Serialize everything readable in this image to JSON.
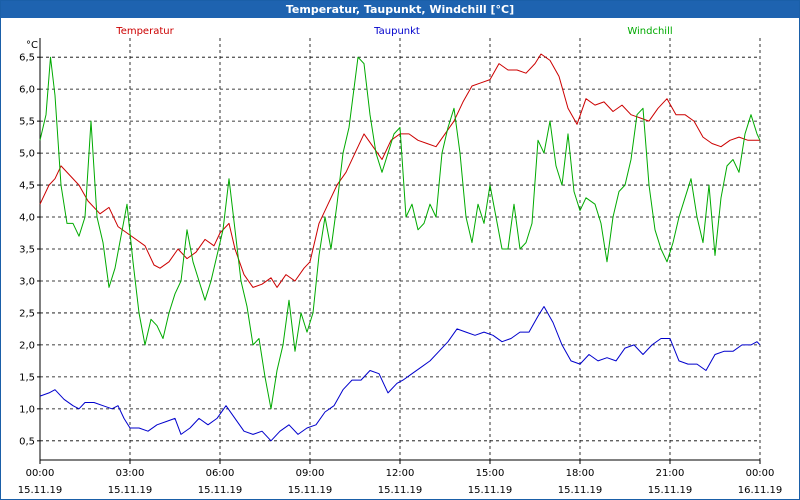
{
  "window": {
    "title": "Temperatur, Taupunkt, Windchill [°C]"
  },
  "chart_data": {
    "type": "line",
    "title": "Temperatur, Taupunkt, Windchill [°C]",
    "ylabel": "°C",
    "xlabel": "",
    "x_ticks": [
      {
        "time": "00:00",
        "date": "15.11.19"
      },
      {
        "time": "03:00",
        "date": "15.11.19"
      },
      {
        "time": "06:00",
        "date": "15.11.19"
      },
      {
        "time": "09:00",
        "date": "15.11.19"
      },
      {
        "time": "12:00",
        "date": "15.11.19"
      },
      {
        "time": "15:00",
        "date": "15.11.19"
      },
      {
        "time": "18:00",
        "date": "15.11.19"
      },
      {
        "time": "21:00",
        "date": "15.11.19"
      },
      {
        "time": "00:00",
        "date": "16.11.19"
      }
    ],
    "x_unit": "hours",
    "xlim": [
      0,
      24
    ],
    "ylim": [
      0.2,
      6.8
    ],
    "y_ticks": [
      "0,5",
      "1,0",
      "1,5",
      "2,0",
      "2,5",
      "3,0",
      "3,5",
      "4,0",
      "4,5",
      "5,0",
      "5,5",
      "6,0",
      "6,5"
    ],
    "grid": true,
    "legend": "top",
    "series": [
      {
        "name": "Temperatur",
        "color": "#cc0000",
        "points": [
          [
            0,
            4.2
          ],
          [
            0.3,
            4.5
          ],
          [
            0.5,
            4.6
          ],
          [
            0.7,
            4.8
          ],
          [
            1.0,
            4.65
          ],
          [
            1.3,
            4.5
          ],
          [
            1.6,
            4.25
          ],
          [
            2.0,
            4.05
          ],
          [
            2.3,
            4.15
          ],
          [
            2.6,
            3.85
          ],
          [
            2.9,
            3.75
          ],
          [
            3.2,
            3.65
          ],
          [
            3.5,
            3.55
          ],
          [
            3.8,
            3.25
          ],
          [
            4.0,
            3.2
          ],
          [
            4.3,
            3.3
          ],
          [
            4.6,
            3.5
          ],
          [
            4.9,
            3.35
          ],
          [
            5.2,
            3.45
          ],
          [
            5.5,
            3.65
          ],
          [
            5.8,
            3.55
          ],
          [
            6.0,
            3.75
          ],
          [
            6.3,
            3.9
          ],
          [
            6.5,
            3.5
          ],
          [
            6.8,
            3.1
          ],
          [
            7.1,
            2.9
          ],
          [
            7.4,
            2.95
          ],
          [
            7.7,
            3.05
          ],
          [
            7.9,
            2.9
          ],
          [
            8.2,
            3.1
          ],
          [
            8.5,
            3.0
          ],
          [
            8.8,
            3.2
          ],
          [
            9.0,
            3.3
          ],
          [
            9.3,
            3.9
          ],
          [
            9.6,
            4.2
          ],
          [
            9.9,
            4.5
          ],
          [
            10.2,
            4.7
          ],
          [
            10.5,
            5.0
          ],
          [
            10.8,
            5.3
          ],
          [
            11.1,
            5.1
          ],
          [
            11.4,
            4.9
          ],
          [
            11.7,
            5.2
          ],
          [
            12.0,
            5.3
          ],
          [
            12.3,
            5.3
          ],
          [
            12.6,
            5.2
          ],
          [
            12.9,
            5.15
          ],
          [
            13.2,
            5.1
          ],
          [
            13.5,
            5.3
          ],
          [
            13.8,
            5.5
          ],
          [
            14.1,
            5.8
          ],
          [
            14.4,
            6.05
          ],
          [
            14.7,
            6.1
          ],
          [
            15.0,
            6.15
          ],
          [
            15.3,
            6.4
          ],
          [
            15.6,
            6.3
          ],
          [
            15.9,
            6.3
          ],
          [
            16.2,
            6.25
          ],
          [
            16.5,
            6.4
          ],
          [
            16.7,
            6.55
          ],
          [
            17.0,
            6.45
          ],
          [
            17.3,
            6.2
          ],
          [
            17.6,
            5.7
          ],
          [
            17.9,
            5.45
          ],
          [
            18.2,
            5.85
          ],
          [
            18.5,
            5.75
          ],
          [
            18.8,
            5.8
          ],
          [
            19.1,
            5.65
          ],
          [
            19.4,
            5.75
          ],
          [
            19.7,
            5.6
          ],
          [
            20.0,
            5.55
          ],
          [
            20.3,
            5.5
          ],
          [
            20.6,
            5.7
          ],
          [
            20.9,
            5.85
          ],
          [
            21.2,
            5.6
          ],
          [
            21.5,
            5.6
          ],
          [
            21.8,
            5.5
          ],
          [
            22.1,
            5.25
          ],
          [
            22.4,
            5.15
          ],
          [
            22.7,
            5.1
          ],
          [
            23.0,
            5.2
          ],
          [
            23.3,
            5.25
          ],
          [
            23.6,
            5.2
          ],
          [
            24.0,
            5.2
          ]
        ]
      },
      {
        "name": "Taupunkt",
        "color": "#0000cc",
        "points": [
          [
            0,
            1.2
          ],
          [
            0.3,
            1.25
          ],
          [
            0.5,
            1.3
          ],
          [
            0.8,
            1.15
          ],
          [
            1.1,
            1.05
          ],
          [
            1.3,
            1.0
          ],
          [
            1.5,
            1.1
          ],
          [
            1.8,
            1.1
          ],
          [
            2.1,
            1.05
          ],
          [
            2.4,
            1.0
          ],
          [
            2.6,
            1.05
          ],
          [
            2.8,
            0.85
          ],
          [
            3.0,
            0.7
          ],
          [
            3.3,
            0.7
          ],
          [
            3.6,
            0.65
          ],
          [
            3.9,
            0.75
          ],
          [
            4.2,
            0.8
          ],
          [
            4.5,
            0.85
          ],
          [
            4.7,
            0.6
          ],
          [
            5.0,
            0.7
          ],
          [
            5.3,
            0.85
          ],
          [
            5.6,
            0.75
          ],
          [
            5.9,
            0.85
          ],
          [
            6.2,
            1.05
          ],
          [
            6.5,
            0.85
          ],
          [
            6.8,
            0.65
          ],
          [
            7.1,
            0.6
          ],
          [
            7.4,
            0.65
          ],
          [
            7.7,
            0.5
          ],
          [
            8.0,
            0.65
          ],
          [
            8.3,
            0.75
          ],
          [
            8.6,
            0.6
          ],
          [
            8.9,
            0.7
          ],
          [
            9.2,
            0.75
          ],
          [
            9.5,
            0.95
          ],
          [
            9.8,
            1.05
          ],
          [
            10.1,
            1.3
          ],
          [
            10.4,
            1.45
          ],
          [
            10.7,
            1.45
          ],
          [
            11.0,
            1.6
          ],
          [
            11.3,
            1.55
          ],
          [
            11.6,
            1.25
          ],
          [
            11.9,
            1.4
          ],
          [
            12.1,
            1.45
          ],
          [
            12.4,
            1.55
          ],
          [
            12.7,
            1.65
          ],
          [
            13.0,
            1.75
          ],
          [
            13.3,
            1.9
          ],
          [
            13.6,
            2.05
          ],
          [
            13.9,
            2.25
          ],
          [
            14.2,
            2.2
          ],
          [
            14.5,
            2.15
          ],
          [
            14.8,
            2.2
          ],
          [
            15.1,
            2.15
          ],
          [
            15.4,
            2.05
          ],
          [
            15.7,
            2.1
          ],
          [
            16.0,
            2.2
          ],
          [
            16.3,
            2.2
          ],
          [
            16.6,
            2.45
          ],
          [
            16.8,
            2.6
          ],
          [
            17.1,
            2.35
          ],
          [
            17.4,
            2.0
          ],
          [
            17.7,
            1.75
          ],
          [
            18.0,
            1.7
          ],
          [
            18.3,
            1.85
          ],
          [
            18.6,
            1.75
          ],
          [
            18.9,
            1.8
          ],
          [
            19.2,
            1.75
          ],
          [
            19.5,
            1.95
          ],
          [
            19.8,
            2.0
          ],
          [
            20.1,
            1.85
          ],
          [
            20.4,
            2.0
          ],
          [
            20.7,
            2.1
          ],
          [
            21.0,
            2.1
          ],
          [
            21.3,
            1.75
          ],
          [
            21.6,
            1.7
          ],
          [
            21.9,
            1.7
          ],
          [
            22.2,
            1.6
          ],
          [
            22.5,
            1.85
          ],
          [
            22.8,
            1.9
          ],
          [
            23.1,
            1.9
          ],
          [
            23.4,
            2.0
          ],
          [
            23.7,
            2.0
          ],
          [
            23.9,
            2.05
          ],
          [
            24.0,
            2.0
          ]
        ]
      },
      {
        "name": "Windchill",
        "color": "#00aa00",
        "points": [
          [
            0,
            5.2
          ],
          [
            0.2,
            5.6
          ],
          [
            0.35,
            6.5
          ],
          [
            0.5,
            5.9
          ],
          [
            0.7,
            4.5
          ],
          [
            0.9,
            3.9
          ],
          [
            1.1,
            3.9
          ],
          [
            1.3,
            3.7
          ],
          [
            1.5,
            4.0
          ],
          [
            1.7,
            5.5
          ],
          [
            1.9,
            4.0
          ],
          [
            2.1,
            3.6
          ],
          [
            2.3,
            2.9
          ],
          [
            2.5,
            3.2
          ],
          [
            2.7,
            3.7
          ],
          [
            2.9,
            4.2
          ],
          [
            3.1,
            3.3
          ],
          [
            3.3,
            2.5
          ],
          [
            3.5,
            2.0
          ],
          [
            3.7,
            2.4
          ],
          [
            3.9,
            2.3
          ],
          [
            4.1,
            2.1
          ],
          [
            4.3,
            2.5
          ],
          [
            4.5,
            2.8
          ],
          [
            4.7,
            3.0
          ],
          [
            4.9,
            3.8
          ],
          [
            5.1,
            3.3
          ],
          [
            5.3,
            3.0
          ],
          [
            5.5,
            2.7
          ],
          [
            5.7,
            3.0
          ],
          [
            5.9,
            3.4
          ],
          [
            6.1,
            3.8
          ],
          [
            6.3,
            4.6
          ],
          [
            6.5,
            3.8
          ],
          [
            6.7,
            3.0
          ],
          [
            6.9,
            2.6
          ],
          [
            7.1,
            2.0
          ],
          [
            7.3,
            2.1
          ],
          [
            7.5,
            1.5
          ],
          [
            7.7,
            1.0
          ],
          [
            7.9,
            1.6
          ],
          [
            8.1,
            2.0
          ],
          [
            8.3,
            2.7
          ],
          [
            8.5,
            1.9
          ],
          [
            8.7,
            2.5
          ],
          [
            8.9,
            2.2
          ],
          [
            9.1,
            2.5
          ],
          [
            9.3,
            3.4
          ],
          [
            9.5,
            4.0
          ],
          [
            9.7,
            3.5
          ],
          [
            9.9,
            4.2
          ],
          [
            10.1,
            5.0
          ],
          [
            10.3,
            5.4
          ],
          [
            10.6,
            6.5
          ],
          [
            10.8,
            6.4
          ],
          [
            11.0,
            5.6
          ],
          [
            11.2,
            5.0
          ],
          [
            11.4,
            4.7
          ],
          [
            11.6,
            5.0
          ],
          [
            11.8,
            5.3
          ],
          [
            12.0,
            5.4
          ],
          [
            12.2,
            4.0
          ],
          [
            12.4,
            4.2
          ],
          [
            12.6,
            3.8
          ],
          [
            12.8,
            3.9
          ],
          [
            13.0,
            4.2
          ],
          [
            13.2,
            4.0
          ],
          [
            13.4,
            5.0
          ],
          [
            13.6,
            5.4
          ],
          [
            13.8,
            5.7
          ],
          [
            14.0,
            5.0
          ],
          [
            14.2,
            4.0
          ],
          [
            14.4,
            3.6
          ],
          [
            14.6,
            4.2
          ],
          [
            14.8,
            3.9
          ],
          [
            15.0,
            4.5
          ],
          [
            15.2,
            4.0
          ],
          [
            15.4,
            3.5
          ],
          [
            15.6,
            3.5
          ],
          [
            15.8,
            4.2
          ],
          [
            16.0,
            3.5
          ],
          [
            16.2,
            3.6
          ],
          [
            16.4,
            3.9
          ],
          [
            16.6,
            5.2
          ],
          [
            16.8,
            5.0
          ],
          [
            17.0,
            5.5
          ],
          [
            17.2,
            4.8
          ],
          [
            17.4,
            4.5
          ],
          [
            17.6,
            5.3
          ],
          [
            17.8,
            4.4
          ],
          [
            18.0,
            4.1
          ],
          [
            18.2,
            4.3
          ],
          [
            18.5,
            4.2
          ],
          [
            18.7,
            3.9
          ],
          [
            18.9,
            3.3
          ],
          [
            19.1,
            4.0
          ],
          [
            19.3,
            4.4
          ],
          [
            19.5,
            4.5
          ],
          [
            19.7,
            4.9
          ],
          [
            19.9,
            5.6
          ],
          [
            20.1,
            5.7
          ],
          [
            20.3,
            4.5
          ],
          [
            20.5,
            3.8
          ],
          [
            20.7,
            3.5
          ],
          [
            20.9,
            3.3
          ],
          [
            21.1,
            3.6
          ],
          [
            21.3,
            4.0
          ],
          [
            21.5,
            4.3
          ],
          [
            21.7,
            4.6
          ],
          [
            21.9,
            4.0
          ],
          [
            22.1,
            3.6
          ],
          [
            22.3,
            4.5
          ],
          [
            22.5,
            3.4
          ],
          [
            22.7,
            4.3
          ],
          [
            22.9,
            4.8
          ],
          [
            23.1,
            4.9
          ],
          [
            23.3,
            4.7
          ],
          [
            23.5,
            5.3
          ],
          [
            23.7,
            5.6
          ],
          [
            23.9,
            5.3
          ],
          [
            24.0,
            5.2
          ]
        ]
      }
    ]
  }
}
